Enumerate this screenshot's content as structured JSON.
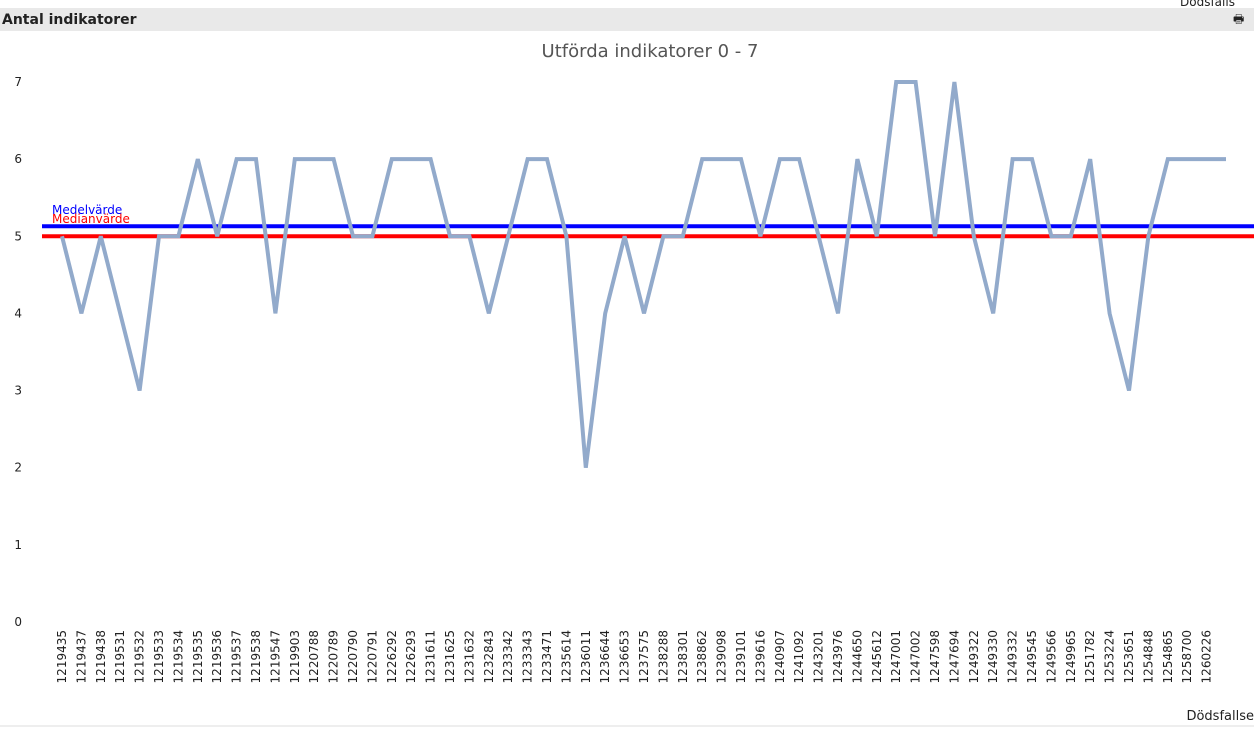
{
  "window_title": "Antal indikatorer",
  "corner_caption": "Dödsfalls",
  "chart_data": {
    "type": "line",
    "title": "Utförda indikatorer 0 - 7",
    "x_label": "Dödsfallse",
    "categories": [
      "1219435",
      "1219437",
      "1219438",
      "1219531",
      "1219532",
      "1219533",
      "1219534",
      "1219535",
      "1219536",
      "1219537",
      "1219538",
      "1219547",
      "1219903",
      "1220788",
      "1220789",
      "1220790",
      "1220791",
      "1226292",
      "1226293",
      "1231611",
      "1231625",
      "1231632",
      "1232843",
      "1233342",
      "1233343",
      "1233471",
      "1235614",
      "1236011",
      "1236644",
      "1236653",
      "1237575",
      "1238288",
      "1238301",
      "1238862",
      "1239098",
      "1239101",
      "1239616",
      "1240907",
      "1241092",
      "1243201",
      "1243976",
      "1244650",
      "1245612",
      "1247001",
      "1247002",
      "1247598",
      "1247694",
      "1249322",
      "1249330",
      "1249332",
      "1249545",
      "1249566",
      "1249965",
      "1251782",
      "1253224",
      "1253651",
      "1254848",
      "1254865",
      "1258700",
      "1260226",
      null
    ],
    "series": [
      {
        "color": "#92aacb",
        "values": [
          5,
          4,
          5,
          4,
          3,
          5,
          5,
          6,
          5,
          6,
          6,
          4,
          6,
          6,
          6,
          5,
          5,
          6,
          6,
          6,
          5,
          5,
          4,
          5,
          6,
          6,
          5,
          2,
          4,
          5,
          4,
          5,
          5,
          6,
          6,
          6,
          5,
          6,
          6,
          5,
          4,
          6,
          5,
          7,
          7,
          5,
          7,
          5,
          4,
          6,
          6,
          5,
          5,
          6,
          4,
          3,
          5,
          6,
          6,
          6,
          6
        ]
      }
    ],
    "reference_lines": [
      {
        "name": "Medelvärde",
        "value": 5.13,
        "color": "#0000ff"
      },
      {
        "name": "Medianvärde",
        "value": 5,
        "color": "#ff0000"
      }
    ],
    "ylim": [
      0,
      7
    ],
    "yticks": [
      0,
      1,
      2,
      3,
      4,
      5,
      6,
      7
    ]
  }
}
